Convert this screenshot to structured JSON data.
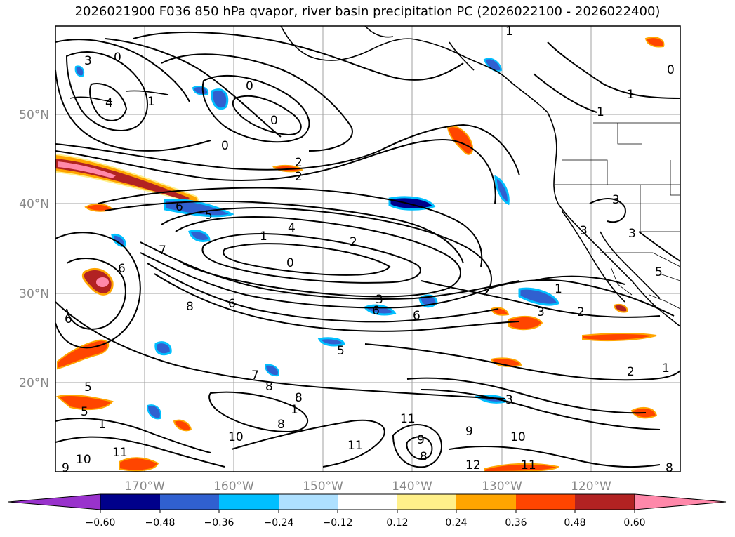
{
  "title": "2026021900 F036 850 hPa qvapor, river basin precipitation PC (2026022100 - 2026022400)",
  "axes": {
    "lon_labels": [
      "170°W",
      "160°W",
      "150°W",
      "140°W",
      "130°W",
      "120°W"
    ],
    "lat_labels": [
      "50°N",
      "40°N",
      "30°N",
      "20°N"
    ]
  },
  "colorbar": {
    "ticks": [
      "−0.60",
      "−0.48",
      "−0.36",
      "−0.24",
      "−0.12",
      "0.12",
      "0.24",
      "0.36",
      "0.48",
      "0.60"
    ],
    "under_color": "#9932cc",
    "over_color": "#ff88aa",
    "colors": [
      "#00008b",
      "#3060d0",
      "#00bfff",
      "#aee0ff",
      "#ffffff",
      "#fff08a",
      "#ffa500",
      "#ff4500",
      "#b22222"
    ]
  },
  "contour_labels": [
    "0",
    "1",
    "2",
    "3",
    "4",
    "5",
    "6",
    "7",
    "8",
    "9",
    "10",
    "11",
    "12"
  ],
  "colors": {
    "tick_text": "#888888",
    "contour": "#000000",
    "grid": "#a0a0a0"
  }
}
